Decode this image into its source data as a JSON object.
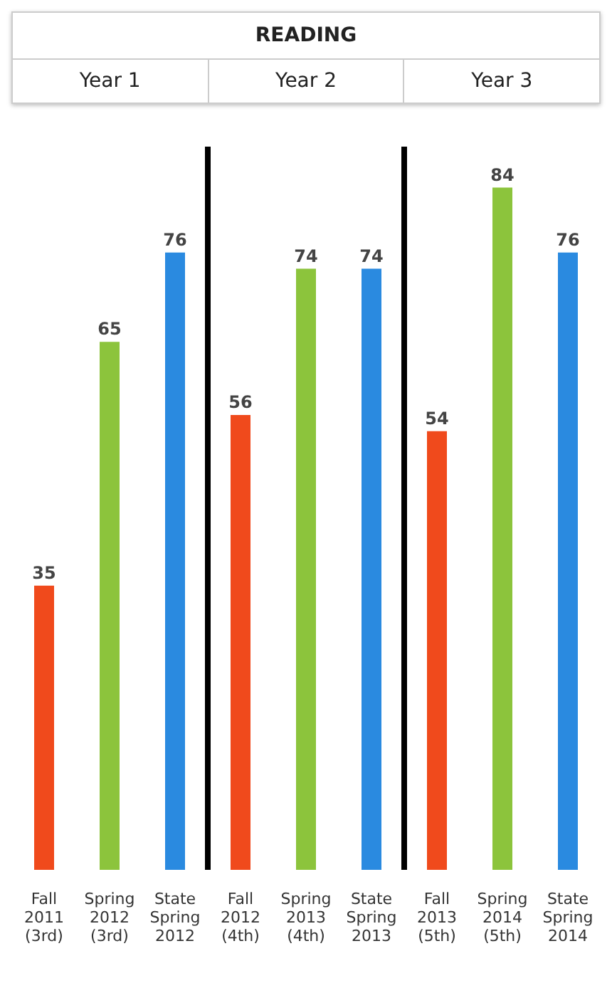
{
  "chart_data": {
    "type": "bar",
    "title": "READING",
    "annotations": [
      "Year 1",
      "Year 2",
      "Year 3"
    ],
    "categories": [
      "Fall\n2011\n(3rd)",
      "Spring\n2012\n(3rd)",
      "State\nSpring\n2012",
      "Fall\n2012\n(4th)",
      "Spring\n2013\n(4th)",
      "State\nSpring\n2013",
      "Fall\n2013\n(5th)",
      "Spring\n2014\n(5th)",
      "State\nSpring\n2014"
    ],
    "values": [
      35,
      65,
      76,
      56,
      74,
      74,
      54,
      84,
      76
    ],
    "colors": [
      "#f04a1c",
      "#8cc43c",
      "#2a8ae0",
      "#f04a1c",
      "#8cc43c",
      "#2a8ae0",
      "#f04a1c",
      "#8cc43c",
      "#2a8ae0"
    ],
    "data_labels": true,
    "grid": false,
    "legend": false
  }
}
